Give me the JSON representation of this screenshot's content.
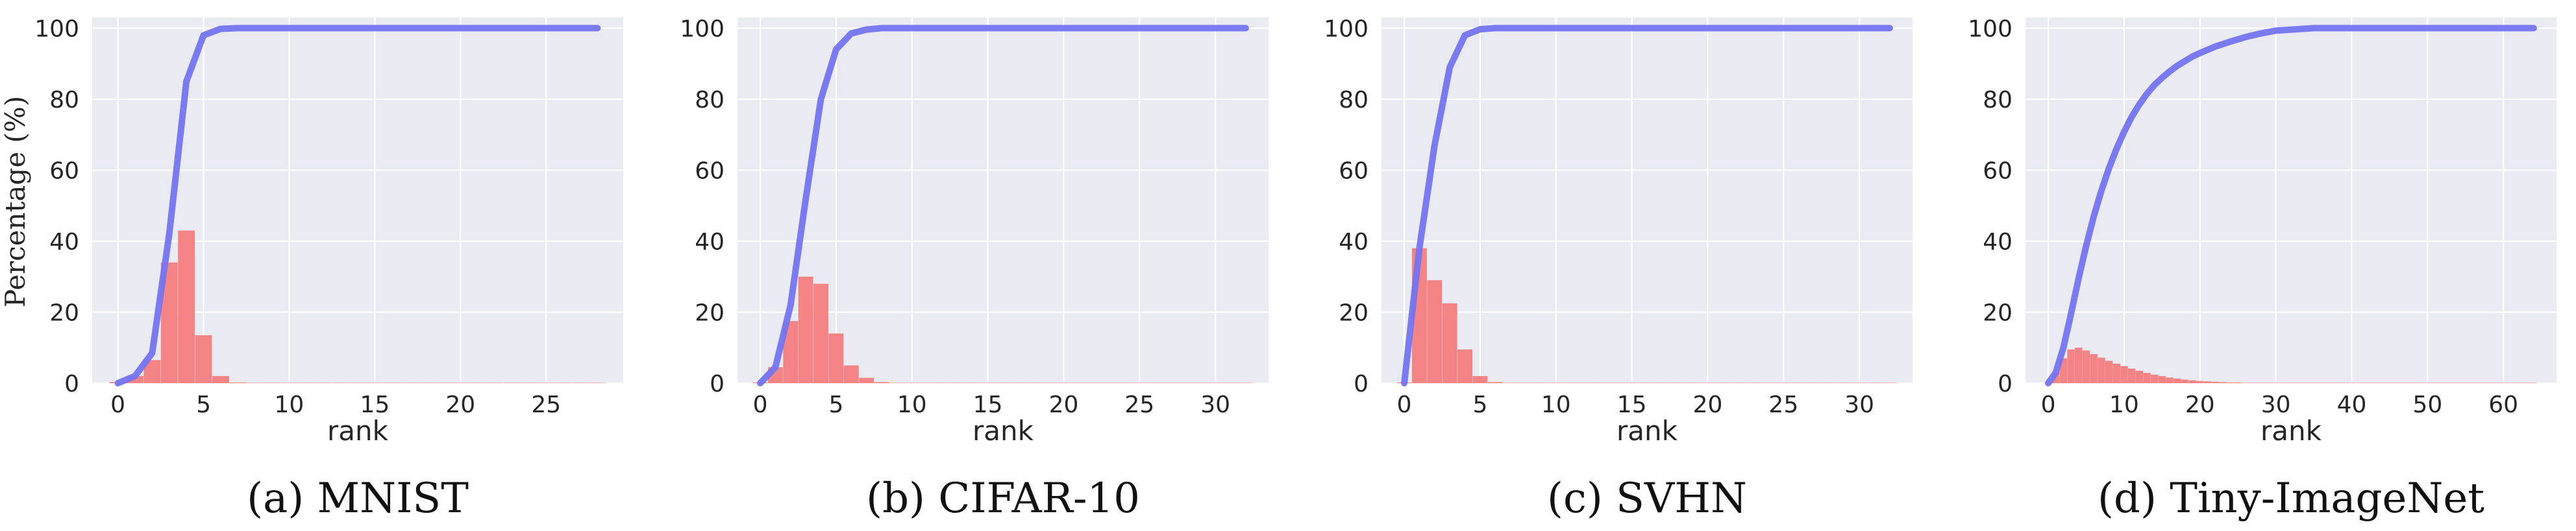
{
  "ylabel": "Percentage (%)",
  "colors": {
    "panel_bg": "#eaeaf2",
    "grid": "#ffffff",
    "bar": "#f37d7d",
    "line": "#7474f0"
  },
  "chart_data": [
    {
      "type": "bar",
      "caption": "(a) MNIST",
      "xlabel": "rank",
      "xlim": [
        -1.5,
        29.5
      ],
      "ylim": [
        0,
        103
      ],
      "xticks": [
        0,
        5,
        10,
        15,
        20,
        25
      ],
      "yticks": [
        0,
        20,
        40,
        60,
        80,
        100
      ],
      "grid": true,
      "series": [
        {
          "kind": "bar",
          "x": [
            0,
            1,
            2,
            3,
            4,
            5,
            6,
            7,
            8,
            9,
            10,
            11,
            12,
            13,
            14,
            15,
            16,
            17,
            18,
            19,
            20,
            21,
            22,
            23,
            24,
            25,
            26,
            27,
            28
          ],
          "values": [
            0.3,
            2,
            6.5,
            34,
            43,
            13.5,
            2,
            0.2,
            0.1,
            0.1,
            0.1,
            0.1,
            0.1,
            0.1,
            0.1,
            0.1,
            0.1,
            0.1,
            0.1,
            0.1,
            0.1,
            0.1,
            0.1,
            0.1,
            0.1,
            0.1,
            0.1,
            0.1,
            0.1
          ]
        },
        {
          "kind": "line",
          "x": [
            0,
            1,
            2,
            3,
            4,
            5,
            6,
            7,
            8,
            9,
            10,
            15,
            20,
            25,
            28
          ],
          "values": [
            0,
            2,
            8.5,
            42,
            85,
            98,
            99.8,
            100,
            100,
            100,
            100,
            100,
            100,
            100,
            100
          ]
        }
      ]
    },
    {
      "type": "bar",
      "caption": "(b) CIFAR-10",
      "xlabel": "rank",
      "xlim": [
        -1.5,
        33.5
      ],
      "ylim": [
        0,
        103
      ],
      "xticks": [
        0,
        5,
        10,
        15,
        20,
        25,
        30
      ],
      "yticks": [
        0,
        20,
        40,
        60,
        80,
        100
      ],
      "grid": true,
      "series": [
        {
          "kind": "bar",
          "x": [
            0,
            1,
            2,
            3,
            4,
            5,
            6,
            7,
            8,
            9,
            10,
            11,
            12,
            13,
            14,
            15,
            16,
            17,
            18,
            19,
            20,
            21,
            22,
            23,
            24,
            25,
            26,
            27,
            28,
            29,
            30,
            31,
            32
          ],
          "values": [
            0.2,
            4.5,
            17.5,
            30,
            28,
            14,
            5,
            1.5,
            0.3,
            0.1,
            0.1,
            0.1,
            0.1,
            0.1,
            0.1,
            0.1,
            0.1,
            0.1,
            0.1,
            0.1,
            0.1,
            0.1,
            0.1,
            0.1,
            0.1,
            0.1,
            0.1,
            0.1,
            0.1,
            0.1,
            0.1,
            0.1,
            0.1
          ]
        },
        {
          "kind": "line",
          "x": [
            0,
            1,
            2,
            3,
            4,
            5,
            6,
            7,
            8,
            9,
            10,
            15,
            20,
            25,
            30,
            32
          ],
          "values": [
            0,
            4.5,
            22,
            52,
            80,
            94,
            98.5,
            99.6,
            100,
            100,
            100,
            100,
            100,
            100,
            100,
            100
          ]
        }
      ]
    },
    {
      "type": "bar",
      "caption": "(c) SVHN",
      "xlabel": "rank",
      "xlim": [
        -1.5,
        33.5
      ],
      "ylim": [
        0,
        103
      ],
      "xticks": [
        0,
        5,
        10,
        15,
        20,
        25,
        30
      ],
      "yticks": [
        0,
        20,
        40,
        60,
        80,
        100
      ],
      "grid": true,
      "series": [
        {
          "kind": "bar",
          "x": [
            0,
            1,
            2,
            3,
            4,
            5,
            6,
            7,
            8,
            9,
            10,
            11,
            12,
            13,
            14,
            15,
            16,
            17,
            18,
            19,
            20,
            21,
            22,
            23,
            24,
            25,
            26,
            27,
            28,
            29,
            30,
            31,
            32
          ],
          "values": [
            0.2,
            38,
            29,
            22.5,
            9.5,
            2,
            0.3,
            0.1,
            0.1,
            0.1,
            0.1,
            0.1,
            0.1,
            0.1,
            0.1,
            0.1,
            0.1,
            0.1,
            0.1,
            0.1,
            0.1,
            0.1,
            0.1,
            0.1,
            0.1,
            0.1,
            0.1,
            0.1,
            0.1,
            0.1,
            0.1,
            0.1,
            0.1
          ]
        },
        {
          "kind": "line",
          "x": [
            0,
            1,
            2,
            3,
            4,
            5,
            6,
            7,
            8,
            9,
            10,
            15,
            20,
            25,
            30,
            32
          ],
          "values": [
            0,
            38,
            67,
            89,
            98,
            99.7,
            100,
            100,
            100,
            100,
            100,
            100,
            100,
            100,
            100,
            100
          ]
        }
      ]
    },
    {
      "type": "bar",
      "caption": "(d) Tiny-ImageNet",
      "xlabel": "rank",
      "xlim": [
        -3,
        67
      ],
      "ylim": [
        0,
        103
      ],
      "xticks": [
        0,
        10,
        20,
        30,
        40,
        50,
        60
      ],
      "yticks": [
        0,
        20,
        40,
        60,
        80,
        100
      ],
      "grid": true,
      "series": [
        {
          "kind": "bar",
          "x": [
            0,
            1,
            2,
            3,
            4,
            5,
            6,
            7,
            8,
            9,
            10,
            11,
            12,
            13,
            14,
            15,
            16,
            17,
            18,
            19,
            20,
            21,
            22,
            23,
            24,
            25,
            26,
            27,
            28,
            29,
            30,
            31,
            32,
            33,
            34,
            35,
            36,
            37,
            38,
            39,
            40,
            41,
            42,
            43,
            44,
            45,
            46,
            47,
            48,
            49,
            50,
            51,
            52,
            53,
            54,
            55,
            56,
            57,
            58,
            59,
            60,
            61,
            62,
            63,
            64
          ],
          "values": [
            0.2,
            3,
            7,
            9.5,
            10,
            9.2,
            8.2,
            7.2,
            6.3,
            5.5,
            4.8,
            4.1,
            3.5,
            2.9,
            2.4,
            2,
            1.6,
            1.3,
            1,
            0.8,
            0.6,
            0.5,
            0.4,
            0.3,
            0.2,
            0.2,
            0.1,
            0.1,
            0.1,
            0.1,
            0.1,
            0.1,
            0.1,
            0.1,
            0.1,
            0.1,
            0.1,
            0.1,
            0.1,
            0.1,
            0.1,
            0.1,
            0.1,
            0.1,
            0.1,
            0.1,
            0.1,
            0.1,
            0.1,
            0.1,
            0.1,
            0.1,
            0.1,
            0.1,
            0.1,
            0.1,
            0.1,
            0.1,
            0.1,
            0.1,
            0.1,
            0.1,
            0.1,
            0.1,
            0.1
          ]
        },
        {
          "kind": "line",
          "x": [
            0,
            1,
            2,
            3,
            4,
            5,
            6,
            7,
            8,
            9,
            10,
            11,
            12,
            13,
            14,
            15,
            16,
            17,
            18,
            19,
            20,
            22,
            24,
            26,
            28,
            30,
            35,
            40,
            45,
            50,
            55,
            60,
            64
          ],
          "values": [
            0,
            3,
            10,
            19.5,
            29.5,
            38.7,
            47,
            54.2,
            60.5,
            66,
            70.8,
            75,
            78.5,
            81.5,
            84,
            86,
            87.8,
            89.4,
            90.7,
            92,
            93,
            94.8,
            96.2,
            97.5,
            98.5,
            99.3,
            100,
            100,
            100,
            100,
            100,
            100,
            100
          ]
        }
      ]
    }
  ]
}
